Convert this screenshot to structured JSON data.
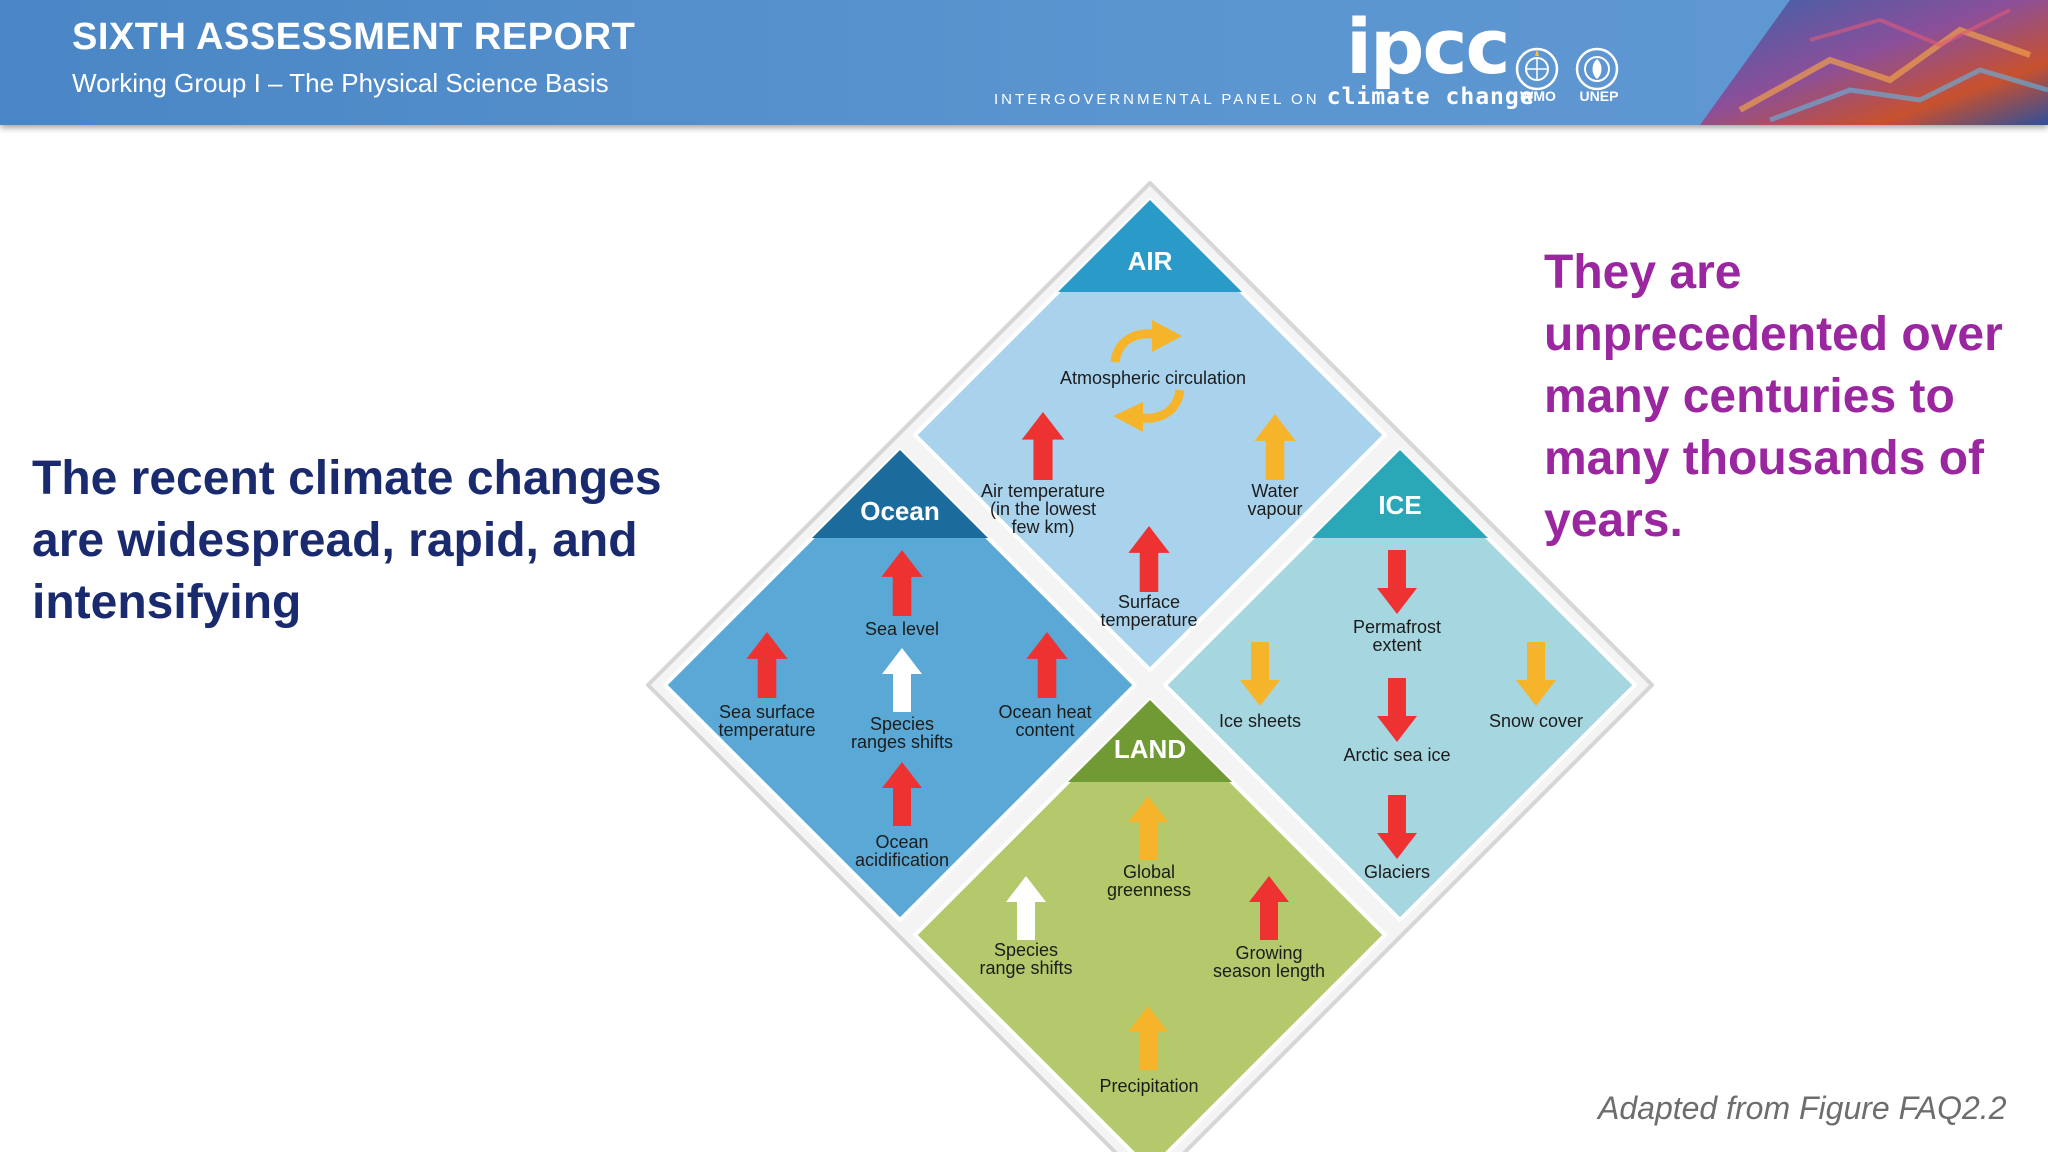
{
  "header": {
    "title": "SIXTH ASSESSMENT REPORT",
    "subtitle": "Working Group I – The Physical Science Basis",
    "logo": "ipcc",
    "tagline_prefix": "INTERGOVERNMENTAL PANEL ON",
    "tagline_suffix": "climate change",
    "emblems": [
      "WMO",
      "UNEP"
    ]
  },
  "left_statement": "The recent climate changes are widespread, rapid, and intensifying",
  "right_statement": "They are unprecedented over many centuries to many thousands of years.",
  "footnote": "Adapted from Figure FAQ2.2",
  "colors": {
    "header": "#5b95d0",
    "left_text": "#1a2a6e",
    "right_text": "#9b27a0",
    "air": "#a9d3ec",
    "air_band": "#2a9ac8",
    "ocean": "#5aa8d5",
    "ocean_band": "#1b6c9d",
    "ice": "#a6d6df",
    "ice_band": "#2aa8b8",
    "land": "#b3c96b",
    "land_band": "#6f9a34",
    "arrow_red": "#ee3231",
    "arrow_orange": "#f6b42a",
    "arrow_white": "#ffffff"
  },
  "diagram": {
    "sections": [
      {
        "name": "AIR",
        "indicators": [
          {
            "label": "Atmospheric circulation",
            "arrow": "cycle-orange"
          },
          {
            "label": "Air temperature (in the lowest few km)",
            "arrow": "up-red"
          },
          {
            "label": "Water vapour",
            "arrow": "up-orange"
          },
          {
            "label": "Surface temperature",
            "arrow": "up-red"
          }
        ]
      },
      {
        "name": "Ocean",
        "indicators": [
          {
            "label": "Sea level",
            "arrow": "up-red"
          },
          {
            "label": "Sea surface temperature",
            "arrow": "up-red"
          },
          {
            "label": "Species ranges shifts",
            "arrow": "up-white"
          },
          {
            "label": "Ocean heat content",
            "arrow": "up-red"
          },
          {
            "label": "Ocean acidification",
            "arrow": "up-red"
          }
        ]
      },
      {
        "name": "ICE",
        "indicators": [
          {
            "label": "Permafrost extent",
            "arrow": "down-red"
          },
          {
            "label": "Ice sheets",
            "arrow": "down-orange"
          },
          {
            "label": "Snow cover",
            "arrow": "down-orange"
          },
          {
            "label": "Arctic sea ice",
            "arrow": "down-red"
          },
          {
            "label": "Glaciers",
            "arrow": "down-red"
          }
        ]
      },
      {
        "name": "LAND",
        "indicators": [
          {
            "label": "Global greenness",
            "arrow": "up-orange"
          },
          {
            "label": "Species range shifts",
            "arrow": "up-white"
          },
          {
            "label": "Growing season length",
            "arrow": "up-red"
          },
          {
            "label": "Precipitation",
            "arrow": "up-orange"
          }
        ]
      }
    ]
  }
}
